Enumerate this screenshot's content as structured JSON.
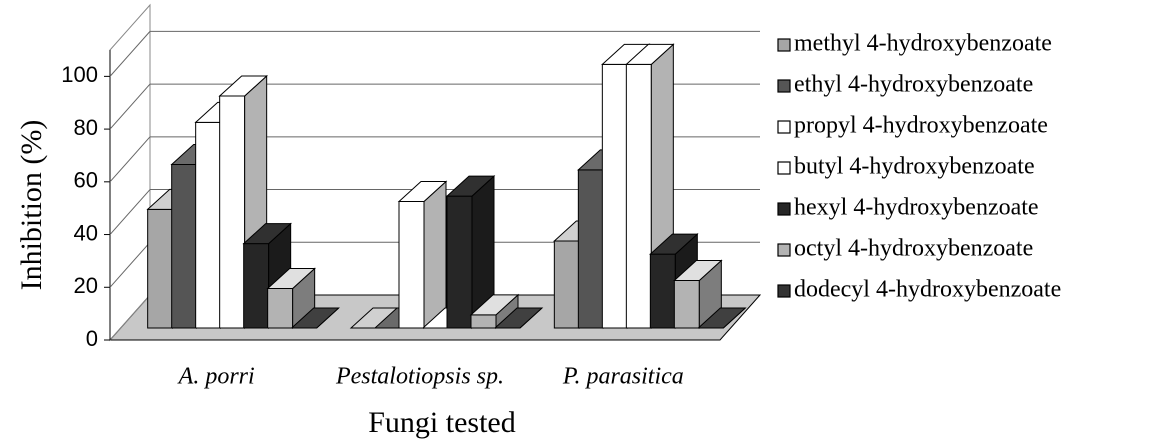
{
  "chart_data": {
    "type": "bar3d",
    "xlabel": "Fungi tested",
    "ylabel": "Inhibition (%)",
    "categories": [
      "A. porri",
      "Pestalotiopsis sp.",
      "P. parasitica"
    ],
    "series": [
      {
        "name": "methyl 4-hydroxybenzoate",
        "color": "#a6a6a6",
        "values": [
          45,
          0,
          33
        ]
      },
      {
        "name": "ethyl 4-hydroxybenzoate",
        "color": "#555555",
        "values": [
          62,
          0,
          60
        ]
      },
      {
        "name": "propyl 4-hydroxybenzoate",
        "color": "#ffffff",
        "values": [
          78,
          48,
          100
        ]
      },
      {
        "name": "butyl 4-hydroxybenzoate",
        "color": "#ffffff",
        "values": [
          88,
          0,
          100
        ]
      },
      {
        "name": "hexyl 4-hydroxybenzoate",
        "color": "#262626",
        "values": [
          32,
          50,
          28
        ]
      },
      {
        "name": "octyl 4-hydroxybenzoate",
        "color": "#b3b3b3",
        "values": [
          15,
          5,
          18
        ]
      },
      {
        "name": "dodecyl 4-hydroxybenzoate",
        "color": "#333333",
        "values": [
          0,
          0,
          0
        ]
      }
    ],
    "ylim": [
      0,
      110
    ],
    "yticks": [
      0,
      20,
      40,
      60,
      80,
      100
    ],
    "grid": true,
    "legend": "right"
  }
}
